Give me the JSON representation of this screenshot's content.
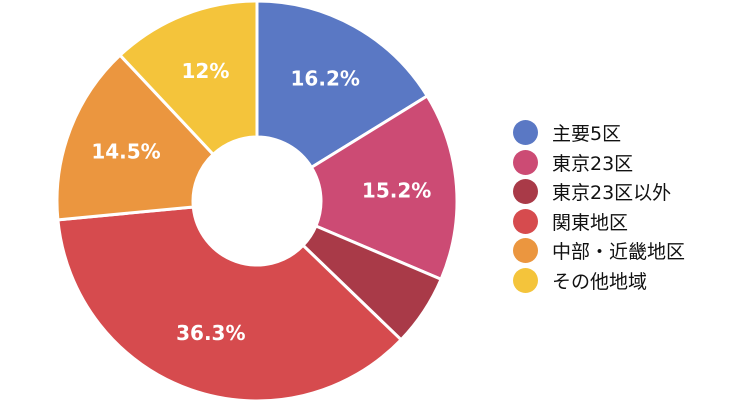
{
  "chart_data": {
    "type": "pie",
    "donut": true,
    "categories": [
      "主要5区",
      "東京23区",
      "東京23区以外",
      "関東地区",
      "中部・近畿地区",
      "その他地域"
    ],
    "values": [
      16.2,
      15.2,
      5.8,
      36.3,
      14.5,
      12
    ],
    "data_labels": [
      "16.2%",
      "15.2%",
      "",
      "36.3%",
      "14.5%",
      "12%"
    ],
    "colors": [
      "#5a78c4",
      "#cc4b74",
      "#a93a48",
      "#d64b4e",
      "#eb963f",
      "#f4c43b"
    ],
    "legend_position": "right",
    "start": "top",
    "direction": "clockwise"
  }
}
